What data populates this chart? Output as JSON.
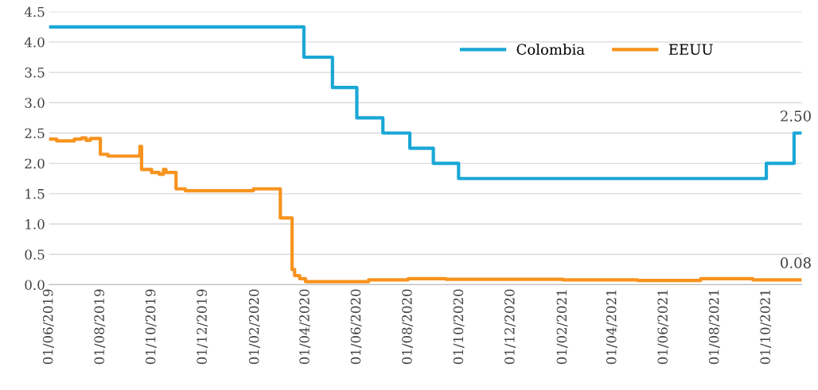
{
  "chart_data": {
    "type": "step",
    "ylim": [
      0,
      4.5
    ],
    "yticks": [
      {
        "value": 0,
        "label": "0.0"
      },
      {
        "value": 0.5,
        "label": "0.5"
      },
      {
        "value": 1,
        "label": "1.0"
      },
      {
        "value": 1.5,
        "label": "1.5"
      },
      {
        "value": 2,
        "label": "2.0"
      },
      {
        "value": 2.5,
        "label": "2.5"
      },
      {
        "value": 3,
        "label": "3.0"
      },
      {
        "value": 3.5,
        "label": "3.5"
      },
      {
        "value": 4,
        "label": "4.0"
      },
      {
        "value": 4.5,
        "label": "4.5"
      }
    ],
    "xlim": [
      "2019-06-01",
      "2021-11-12"
    ],
    "xticks": [
      {
        "value": "2019-06-01",
        "label": "01/06/2019"
      },
      {
        "value": "2019-08-01",
        "label": "01/08/2019"
      },
      {
        "value": "2019-10-01",
        "label": "01/10/2019"
      },
      {
        "value": "2019-12-01",
        "label": "01/12/2019"
      },
      {
        "value": "2020-02-01",
        "label": "01/02/2020"
      },
      {
        "value": "2020-04-01",
        "label": "01/04/2020"
      },
      {
        "value": "2020-06-01",
        "label": "01/06/2020"
      },
      {
        "value": "2020-08-01",
        "label": "01/08/2020"
      },
      {
        "value": "2020-10-01",
        "label": "01/10/2020"
      },
      {
        "value": "2020-12-01",
        "label": "01/12/2020"
      },
      {
        "value": "2021-02-01",
        "label": "01/02/2021"
      },
      {
        "value": "2021-04-01",
        "label": "01/04/2021"
      },
      {
        "value": "2021-06-01",
        "label": "01/06/2021"
      },
      {
        "value": "2021-08-01",
        "label": "01/08/2021"
      },
      {
        "value": "2021-10-01",
        "label": "01/10/2021"
      }
    ],
    "grid": "y",
    "legend": "top right",
    "series": [
      {
        "name": "Colombia",
        "color": "#1aa7d6",
        "x": [
          "2019-06-01",
          "2020-03-30",
          "2020-05-03",
          "2020-06-01",
          "2020-07-02",
          "2020-08-03",
          "2020-08-31",
          "2020-09-30",
          "2021-10-01",
          "2021-11-03",
          "2021-11-12"
        ],
        "values": [
          4.25,
          3.75,
          3.25,
          2.75,
          2.5,
          2.25,
          2.0,
          1.75,
          2.0,
          2.5,
          2.5
        ]
      },
      {
        "name": "EEUU",
        "color": "#f7931e",
        "x": [
          "2019-06-01",
          "2019-06-10",
          "2019-07-01",
          "2019-07-10",
          "2019-07-15",
          "2019-07-20",
          "2019-08-01",
          "2019-08-10",
          "2019-09-15",
          "2019-09-17",
          "2019-09-19",
          "2019-10-01",
          "2019-10-10",
          "2019-10-15",
          "2019-10-18",
          "2019-10-30",
          "2019-11-10",
          "2020-01-30",
          "2020-03-02",
          "2020-03-16",
          "2020-03-19",
          "2020-03-25",
          "2020-04-01",
          "2020-06-01",
          "2020-06-15",
          "2020-08-01",
          "2020-09-15",
          "2021-02-01",
          "2021-05-01",
          "2021-07-15",
          "2021-09-15",
          "2021-11-12"
        ],
        "values": [
          2.4,
          2.37,
          2.4,
          2.42,
          2.38,
          2.41,
          2.15,
          2.12,
          2.12,
          2.28,
          1.9,
          1.85,
          1.82,
          1.9,
          1.85,
          1.58,
          1.55,
          1.58,
          1.1,
          0.25,
          0.15,
          0.1,
          0.05,
          0.05,
          0.08,
          0.1,
          0.09,
          0.08,
          0.07,
          0.1,
          0.08,
          0.08
        ]
      }
    ],
    "annotations": [
      {
        "text": "2.50",
        "x": "2021-11-05",
        "y": 2.5
      },
      {
        "text": "0.08",
        "x": "2021-11-05",
        "y": 0.08
      }
    ]
  }
}
